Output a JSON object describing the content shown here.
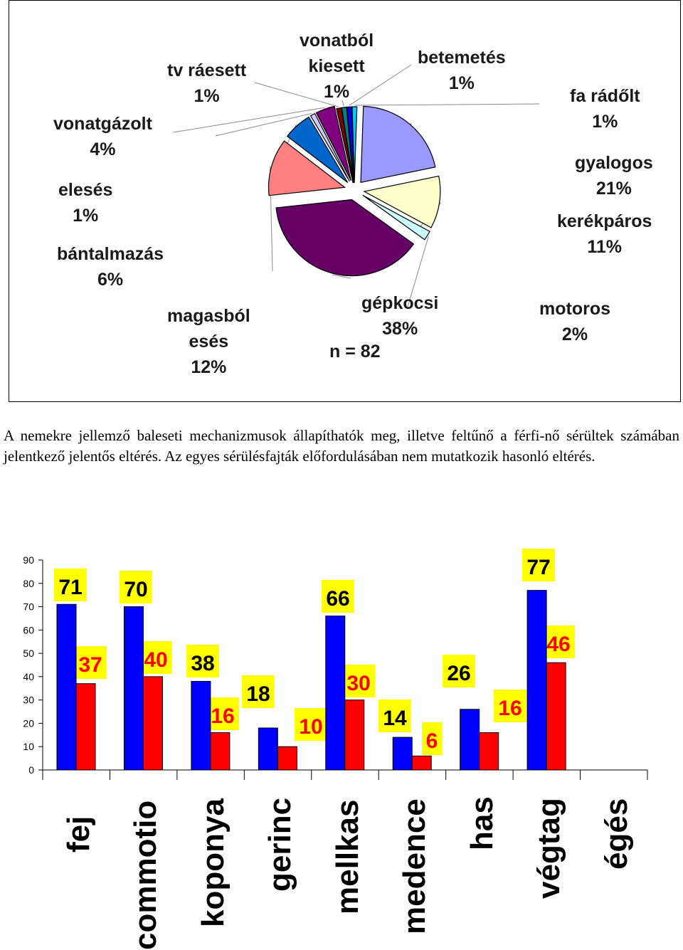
{
  "pie_chart": {
    "n_label": "n = 82",
    "labels": [
      {
        "lines": [
          "gyalogos",
          "21%"
        ]
      },
      {
        "lines": [
          "kerékpáros",
          "11%"
        ]
      },
      {
        "lines": [
          "motoros",
          "2%"
        ]
      },
      {
        "lines": [
          "gépkocsi",
          "38%"
        ]
      },
      {
        "lines": [
          "magasból",
          "esés",
          "12%"
        ]
      },
      {
        "lines": [
          "bántalmazás",
          "6%"
        ]
      },
      {
        "lines": [
          "elesés",
          "1%"
        ]
      },
      {
        "lines": [
          "vonatgázolt",
          "4%"
        ]
      },
      {
        "lines": [
          "tv ráesett",
          "1%"
        ]
      },
      {
        "lines": [
          "vonatból",
          "kiesett",
          "1%"
        ]
      },
      {
        "lines": [
          "betemetés",
          "1%"
        ]
      },
      {
        "lines": [
          "fa rádőlt",
          "1%"
        ]
      }
    ]
  },
  "chart_data": [
    {
      "type": "pie",
      "title": "",
      "note": "n = 82",
      "slices": [
        {
          "label": "gyalogos",
          "value": 21,
          "color": "#9999ff"
        },
        {
          "label": "kerékpáros",
          "value": 11,
          "color": "#ffffcc"
        },
        {
          "label": "motoros",
          "value": 2,
          "color": "#ccffff"
        },
        {
          "label": "gépkocsi",
          "value": 38,
          "color": "#660066"
        },
        {
          "label": "magasból esés",
          "value": 12,
          "color": "#ff8080"
        },
        {
          "label": "bántalmazás",
          "value": 6,
          "color": "#0066cc"
        },
        {
          "label": "elesés",
          "value": 1,
          "color": "#ccccff"
        },
        {
          "label": "vonatgázolt",
          "value": 4,
          "color": "#800080"
        },
        {
          "label": "tv ráesett",
          "value": 1,
          "color": "#800000"
        },
        {
          "label": "vonatból kiesett",
          "value": 1,
          "color": "#008080"
        },
        {
          "label": "betemetés",
          "value": 1,
          "color": "#0000ff"
        },
        {
          "label": "fa rádőlt",
          "value": 1,
          "color": "#00ccff"
        }
      ]
    },
    {
      "type": "bar",
      "title": "",
      "categories": [
        "fej",
        "commotio",
        "koponya",
        "gerinc",
        "mellkas",
        "medence",
        "has",
        "végtag",
        "égés"
      ],
      "series": [
        {
          "name": "series1",
          "color": "#0000ff",
          "values": [
            71,
            70,
            38,
            18,
            66,
            14,
            26,
            77,
            null
          ]
        },
        {
          "name": "series2",
          "color": "#ff0000",
          "values": [
            37,
            40,
            16,
            10,
            30,
            6,
            16,
            46,
            null
          ]
        }
      ],
      "ylim": [
        0,
        90
      ],
      "yticks": [
        0,
        10,
        20,
        30,
        40,
        50,
        60,
        70,
        80,
        90
      ],
      "grid": false,
      "label_colors": {
        "series1": "#000000",
        "series2": "#ff0000",
        "background": "#ffff00"
      }
    }
  ],
  "text": {
    "paragraph": "A nemekre jellemző baleseti mechanizmusok állapíthatók meg, illetve feltűnő a férfi-nő sérültek számában jelentkező jelentős eltérés. Az egyes sérülésfajták előfordulásában nem mutatkozik hasonló eltérés."
  }
}
